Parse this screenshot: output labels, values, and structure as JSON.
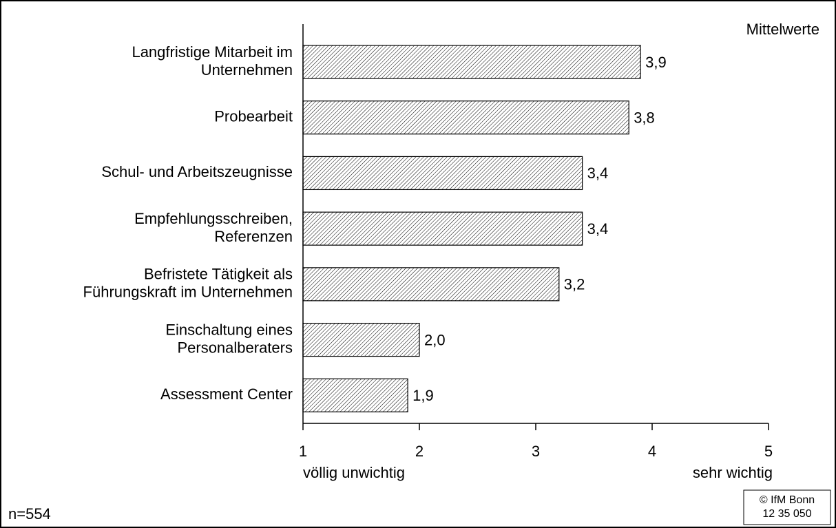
{
  "chart_data": {
    "type": "bar",
    "orientation": "horizontal",
    "categories": [
      [
        "Langfristige Mitarbeit im",
        "Unternehmen"
      ],
      [
        "Probearbeit"
      ],
      [
        "Schul- und Arbeitszeugnisse"
      ],
      [
        "Empfehlungsschreiben,",
        "Referenzen"
      ],
      [
        "Befristete Tätigkeit als",
        "Führungskraft im Unternehmen"
      ],
      [
        "Einschaltung eines",
        "Personalberaters"
      ],
      [
        "Assessment Center"
      ]
    ],
    "values": [
      3.9,
      3.8,
      3.4,
      3.4,
      3.2,
      2.0,
      1.9
    ],
    "value_labels": [
      "3,9",
      "3,8",
      "3,4",
      "3,4",
      "3,2",
      "2,0",
      "1,9"
    ],
    "color": "#000000",
    "xlim": [
      1,
      5
    ],
    "xticks": [
      1,
      2,
      3,
      4,
      5
    ],
    "x_axis_low_label": "völlig unwichtig",
    "x_axis_high_label": "sehr wichtig",
    "annotations": {
      "unit": "Mittelwerte",
      "sample": "n=554",
      "source": [
        "© IfM Bonn",
        "12 35 050"
      ]
    }
  }
}
